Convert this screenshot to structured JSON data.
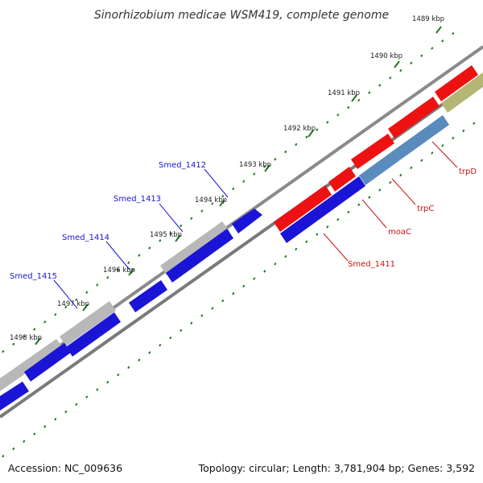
{
  "title": "Sinorhizobium medicae WSM419, complete genome",
  "accession": "Accession: NC_009636",
  "summary": "Topology: circular; Length: 3,781,904 bp; Genes: 3,592",
  "colors": {
    "backbone": "#808080",
    "tick": "#1f7a1f",
    "blue_gene": "#1a14d6",
    "red_gene": "#ee1111",
    "grey_gene": "#b8b8b8",
    "steel_gene": "#5a8bbd",
    "olive_gene": "#b5b574",
    "blue_label": "#1a14d6",
    "red_label": "#cc1111"
  },
  "ticks": [
    {
      "label": "1489 kbp"
    },
    {
      "label": "1490 kbp"
    },
    {
      "label": "1491 kbp"
    },
    {
      "label": "1492 kbp"
    },
    {
      "label": "1493 kbp"
    },
    {
      "label": "1494 kbp"
    },
    {
      "label": "1495 kbp"
    },
    {
      "label": "1496 kbp"
    },
    {
      "label": "1497 kbp"
    },
    {
      "label": "1498 kbp"
    }
  ],
  "gene_labels": {
    "smed_1412": "Smed_1412",
    "smed_1413": "Smed_1413",
    "smed_1414": "Smed_1414",
    "smed_1415": "Smed_1415",
    "smed_1411": "Smed_1411",
    "moac": "moaC",
    "trpc": "trpC",
    "trpd": "trpD"
  }
}
